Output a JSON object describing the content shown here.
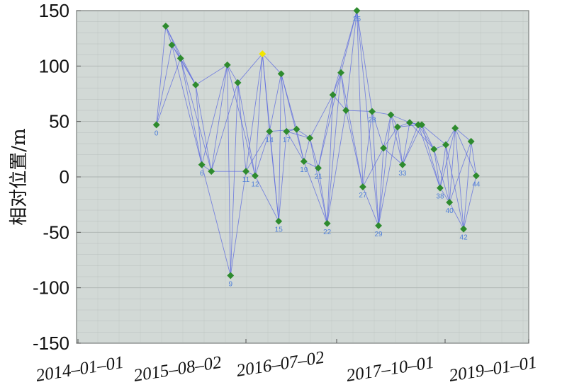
{
  "chart_data": {
    "type": "scatter",
    "title": "",
    "xlabel": "",
    "ylabel": "相对位置/m",
    "ylim": [
      -150,
      150
    ],
    "y_ticks": [
      150,
      100,
      50,
      0,
      -50,
      -100,
      -150
    ],
    "x_tick_labels": [
      "2014–01–01",
      "2015–08–02",
      "2016–07–02",
      "2017–10–01",
      "2019–01–01"
    ],
    "grid": true,
    "colors": {
      "background": "#d2d9d6",
      "edge": "#5b68e0",
      "point": "#2e8b2e",
      "reference_point": "#f2e600",
      "label": "#4f7fd8",
      "grid": "#a8b0ad"
    },
    "points": [
      {
        "id": "0",
        "date": "2014-09-28",
        "y": 47
      },
      {
        "id": "",
        "date": "2014-10-30",
        "y": 136
      },
      {
        "id": "",
        "date": "2014-11-20",
        "y": 119
      },
      {
        "id": "",
        "date": "2014-12-20",
        "y": 107
      },
      {
        "id": "",
        "date": "2015-02-10",
        "y": 83
      },
      {
        "id": "6",
        "date": "2015-03-03",
        "y": 11
      },
      {
        "id": "",
        "date": "2015-04-05",
        "y": 5
      },
      {
        "id": "",
        "date": "2015-05-30",
        "y": 101
      },
      {
        "id": "9",
        "date": "2015-06-10",
        "y": -89
      },
      {
        "id": "",
        "date": "2015-07-05",
        "y": 85
      },
      {
        "id": "11",
        "date": "2015-08-02",
        "y": 5
      },
      {
        "id": "12",
        "date": "2015-09-05",
        "y": 1
      },
      {
        "id": "",
        "date": "2015-10-02",
        "y": 111
      },
      {
        "id": "14",
        "date": "2015-10-28",
        "y": 41
      },
      {
        "id": "15",
        "date": "2015-12-01",
        "y": -40
      },
      {
        "id": "",
        "date": "2015-12-10",
        "y": 93
      },
      {
        "id": "17",
        "date": "2015-12-30",
        "y": 41
      },
      {
        "id": "",
        "date": "2016-02-05",
        "y": 43
      },
      {
        "id": "19",
        "date": "2016-03-03",
        "y": 14
      },
      {
        "id": "",
        "date": "2016-03-25",
        "y": 35
      },
      {
        "id": "21",
        "date": "2016-04-25",
        "y": 8
      },
      {
        "id": "22",
        "date": "2016-05-28",
        "y": -42
      },
      {
        "id": "",
        "date": "2016-06-18",
        "y": 74
      },
      {
        "id": "",
        "date": "2016-07-20",
        "y": 94
      },
      {
        "id": "",
        "date": "2016-08-10",
        "y": 60
      },
      {
        "id": "25",
        "date": "2016-09-25",
        "y": 150
      },
      {
        "id": "27",
        "date": "2016-10-20",
        "y": -9
      },
      {
        "id": "28",
        "date": "2016-11-28",
        "y": 59
      },
      {
        "id": "29",
        "date": "2016-12-25",
        "y": -44
      },
      {
        "id": "",
        "date": "2017-01-15",
        "y": 26
      },
      {
        "id": "",
        "date": "2017-02-15",
        "y": 56
      },
      {
        "id": "",
        "date": "2017-03-15",
        "y": 45
      },
      {
        "id": "33",
        "date": "2017-04-05",
        "y": 11
      },
      {
        "id": "",
        "date": "2017-05-05",
        "y": 49
      },
      {
        "id": "",
        "date": "2017-06-10",
        "y": 47
      },
      {
        "id": "",
        "date": "2017-06-25",
        "y": 47
      },
      {
        "id": "",
        "date": "2017-08-15",
        "y": 25
      },
      {
        "id": "38",
        "date": "2017-09-10",
        "y": -10
      },
      {
        "id": "",
        "date": "2017-10-05",
        "y": 29
      },
      {
        "id": "40",
        "date": "2017-10-25",
        "y": -23
      },
      {
        "id": "",
        "date": "2017-11-25",
        "y": 44
      },
      {
        "id": "42",
        "date": "2018-01-10",
        "y": -47
      },
      {
        "id": "",
        "date": "2018-02-20",
        "y": 32
      },
      {
        "id": "44",
        "date": "2018-03-20",
        "y": 1
      }
    ],
    "reference_point_index": 12,
    "edges": [
      [
        0,
        1
      ],
      [
        0,
        2
      ],
      [
        0,
        3
      ],
      [
        1,
        2
      ],
      [
        1,
        3
      ],
      [
        1,
        4
      ],
      [
        2,
        3
      ],
      [
        2,
        4
      ],
      [
        2,
        5
      ],
      [
        3,
        4
      ],
      [
        3,
        5
      ],
      [
        3,
        6
      ],
      [
        4,
        5
      ],
      [
        4,
        6
      ],
      [
        4,
        7
      ],
      [
        5,
        6
      ],
      [
        5,
        7
      ],
      [
        5,
        8
      ],
      [
        6,
        7
      ],
      [
        6,
        9
      ],
      [
        6,
        10
      ],
      [
        7,
        8
      ],
      [
        7,
        9
      ],
      [
        7,
        11
      ],
      [
        8,
        9
      ],
      [
        8,
        10
      ],
      [
        9,
        10
      ],
      [
        9,
        11
      ],
      [
        9,
        12
      ],
      [
        10,
        11
      ],
      [
        10,
        12
      ],
      [
        10,
        13
      ],
      [
        11,
        12
      ],
      [
        11,
        13
      ],
      [
        11,
        14
      ],
      [
        12,
        13
      ],
      [
        12,
        14
      ],
      [
        12,
        15
      ],
      [
        13,
        14
      ],
      [
        13,
        15
      ],
      [
        13,
        17
      ],
      [
        14,
        15
      ],
      [
        14,
        16
      ],
      [
        15,
        16
      ],
      [
        15,
        17
      ],
      [
        15,
        18
      ],
      [
        16,
        17
      ],
      [
        16,
        18
      ],
      [
        16,
        19
      ],
      [
        17,
        18
      ],
      [
        17,
        19
      ],
      [
        18,
        19
      ],
      [
        18,
        20
      ],
      [
        18,
        21
      ],
      [
        19,
        20
      ],
      [
        19,
        21
      ],
      [
        19,
        22
      ],
      [
        20,
        21
      ],
      [
        20,
        22
      ],
      [
        20,
        23
      ],
      [
        21,
        22
      ],
      [
        21,
        23
      ],
      [
        21,
        24
      ],
      [
        22,
        23
      ],
      [
        22,
        24
      ],
      [
        22,
        25
      ],
      [
        23,
        24
      ],
      [
        23,
        25
      ],
      [
        23,
        26
      ],
      [
        24,
        25
      ],
      [
        24,
        26
      ],
      [
        24,
        27
      ],
      [
        25,
        26
      ],
      [
        25,
        27
      ],
      [
        25,
        28
      ],
      [
        26,
        27
      ],
      [
        26,
        28
      ],
      [
        26,
        29
      ],
      [
        27,
        28
      ],
      [
        27,
        29
      ],
      [
        27,
        30
      ],
      [
        28,
        29
      ],
      [
        28,
        30
      ],
      [
        28,
        31
      ],
      [
        29,
        30
      ],
      [
        29,
        31
      ],
      [
        29,
        32
      ],
      [
        30,
        31
      ],
      [
        30,
        32
      ],
      [
        30,
        33
      ],
      [
        31,
        32
      ],
      [
        31,
        33
      ],
      [
        31,
        34
      ],
      [
        32,
        33
      ],
      [
        32,
        34
      ],
      [
        32,
        35
      ],
      [
        33,
        34
      ],
      [
        33,
        35
      ],
      [
        33,
        36
      ],
      [
        34,
        35
      ],
      [
        34,
        36
      ],
      [
        34,
        37
      ],
      [
        35,
        36
      ],
      [
        35,
        37
      ],
      [
        35,
        38
      ],
      [
        36,
        37
      ],
      [
        36,
        38
      ],
      [
        36,
        39
      ],
      [
        37,
        38
      ],
      [
        37,
        39
      ],
      [
        37,
        40
      ],
      [
        38,
        39
      ],
      [
        38,
        40
      ],
      [
        38,
        41
      ],
      [
        39,
        40
      ],
      [
        39,
        41
      ],
      [
        39,
        42
      ],
      [
        40,
        41
      ],
      [
        40,
        42
      ],
      [
        40,
        43
      ],
      [
        41,
        42
      ],
      [
        41,
        43
      ],
      [
        42,
        43
      ]
    ]
  }
}
